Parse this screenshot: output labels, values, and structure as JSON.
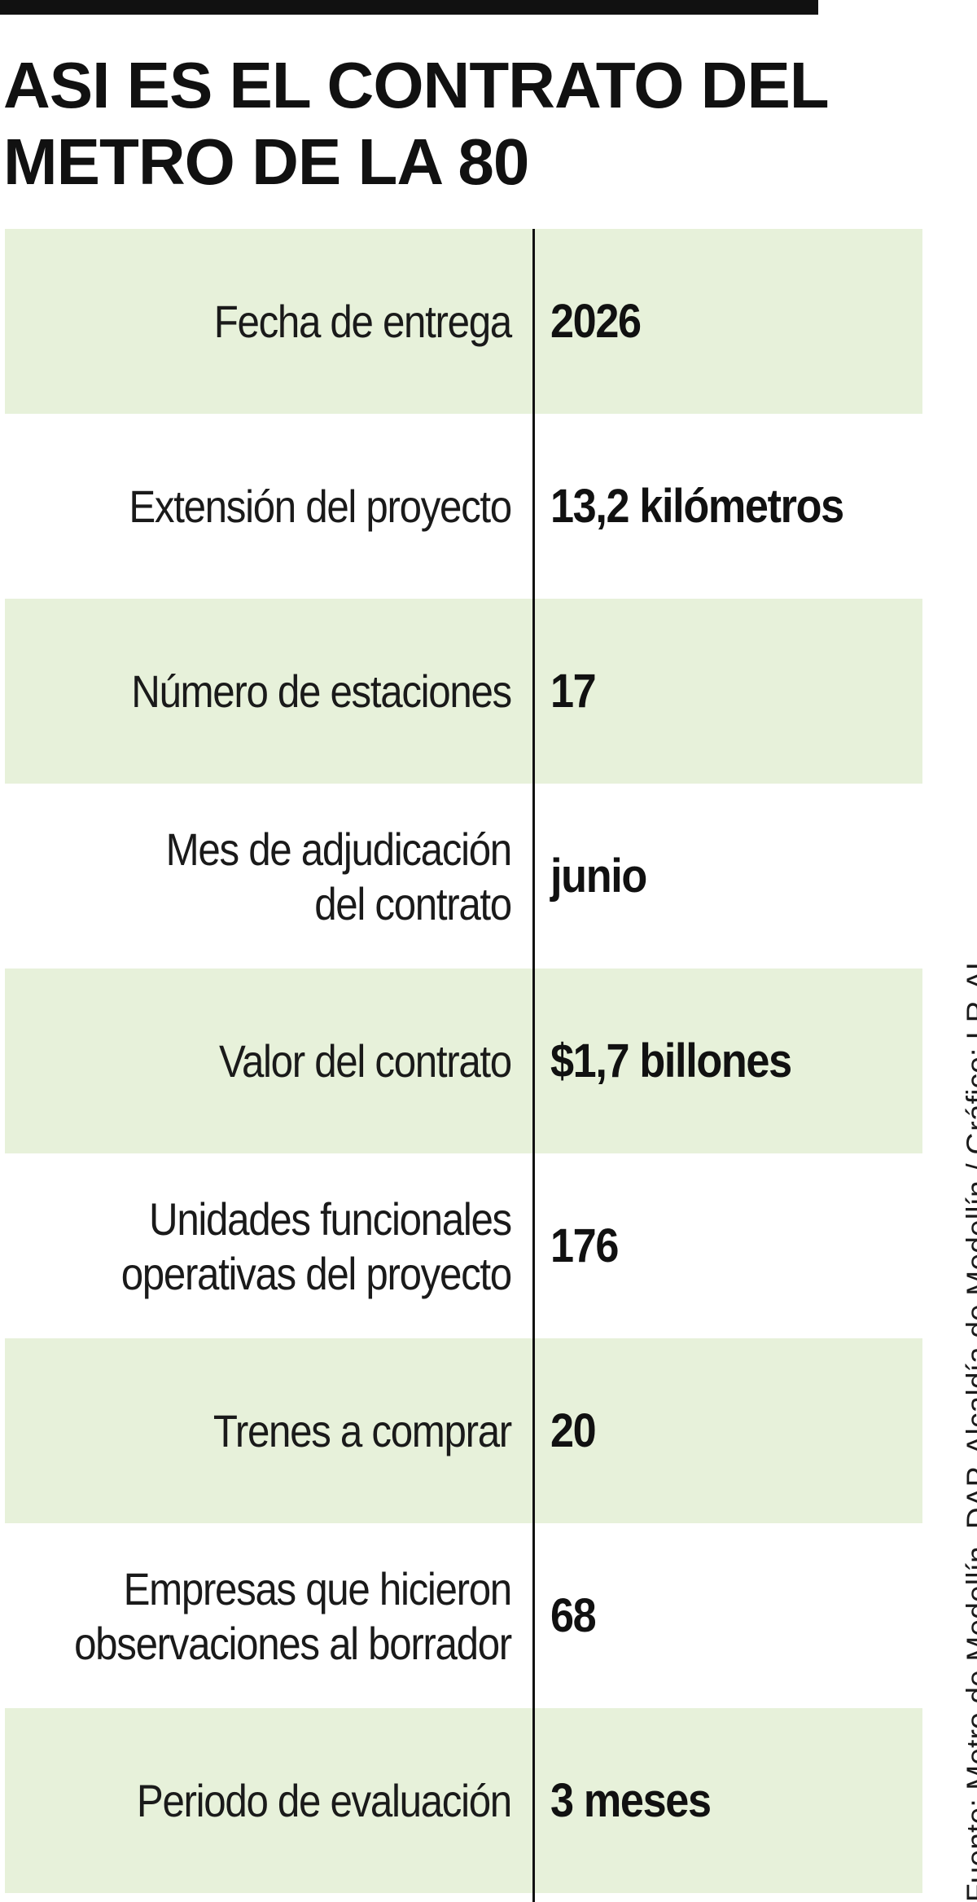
{
  "headline": {
    "line1": "ASI ES EL CONTRATO DEL",
    "line2": "METRO DE LA 80"
  },
  "rows": [
    {
      "label_lines": [
        "Fecha de entrega"
      ],
      "value": "2026"
    },
    {
      "label_lines": [
        "Extensión del proyecto"
      ],
      "value": "13,2 kilómetros"
    },
    {
      "label_lines": [
        "Número de estaciones"
      ],
      "value": "17"
    },
    {
      "label_lines": [
        "Mes de adjudicación",
        "del contrato"
      ],
      "value": "junio"
    },
    {
      "label_lines": [
        "Valor del contrato"
      ],
      "value": "$1,7 billones"
    },
    {
      "label_lines": [
        "Unidades funcionales",
        "operativas del proyecto"
      ],
      "value": "176"
    },
    {
      "label_lines": [
        "Trenes a comprar"
      ],
      "value": "20"
    },
    {
      "label_lines": [
        "Empresas que hicieron",
        "observaciones al borrador"
      ],
      "value": "68"
    },
    {
      "label_lines": [
        "Periodo de evaluación"
      ],
      "value": "3 meses"
    }
  ],
  "source": "Fuente: Metro de Medellín, DAP, Alcaldía de Medellín / Gráfico: LR-AL",
  "colors": {
    "row_shade": "#e7f1da",
    "text": "#111111",
    "rule": "#111111"
  }
}
